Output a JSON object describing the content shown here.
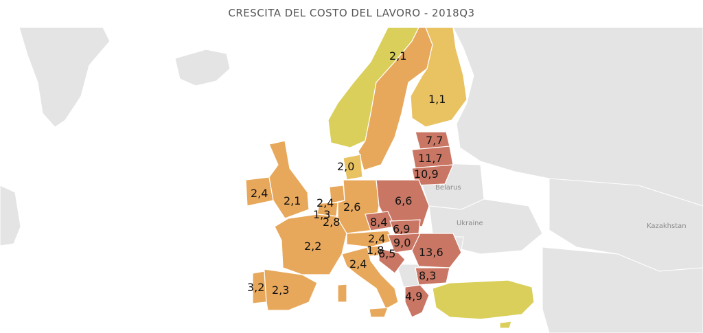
{
  "title": "CRESCITA DEL COSTO DEL LAVORO - 2018Q3",
  "colors": {
    "low": "#d9cf5a",
    "mid_low": "#e9c262",
    "mid": "#e8a85c",
    "high": "#c97764",
    "land": "#e4e4e4",
    "border": "#ffffff",
    "water": "#ffffff"
  },
  "neighbors": {
    "belarus": "Belarus",
    "ukraine": "Ukraine",
    "kazakhstan": "Kazakhstan"
  },
  "values": {
    "norway": "",
    "sweden": "2,1",
    "finland": "1,1",
    "estonia": "7,7",
    "latvia": "11,7",
    "lithuania": "10,9",
    "denmark": "2,0",
    "ireland": "2,4",
    "uk": "2,1",
    "netherlands": "2,4",
    "belgium": "1,3",
    "luxembourg": "2,8",
    "germany": "2,6",
    "poland": "6,6",
    "czechia": "8,4",
    "slovakia": "6,9",
    "austria": "2,4",
    "hungary": "9,0",
    "slovenia": "1,8",
    "croatia": "6,5",
    "romania": "13,6",
    "bulgaria": "8,3",
    "france": "2,2",
    "italy": "2,4",
    "portugal": "3,2",
    "spain": "2,3",
    "greece": "4,9",
    "turkey": ""
  }
}
